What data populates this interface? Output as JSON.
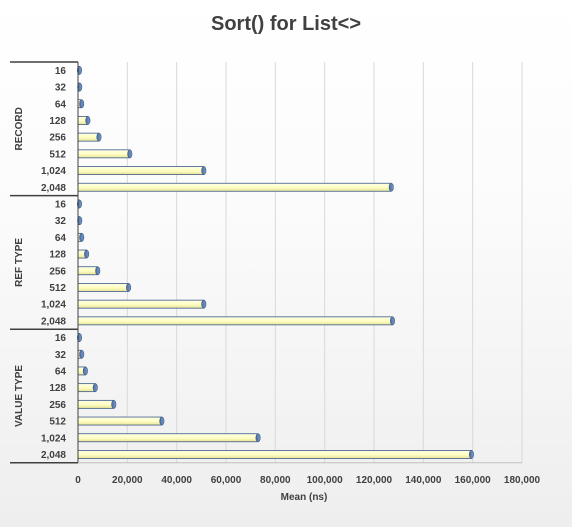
{
  "chart_data": {
    "type": "bar",
    "orientation": "horizontal",
    "title": "Sort() for List<>",
    "xlabel": "Mean (ns)",
    "xlim": [
      0,
      180000
    ],
    "xticks": [
      0,
      20000,
      40000,
      60000,
      80000,
      100000,
      120000,
      140000,
      160000,
      180000
    ],
    "xtick_labels": [
      "0",
      "20,000",
      "40,000",
      "60,000",
      "80,000",
      "100,000",
      "120,000",
      "140,000",
      "160,000",
      "180,000"
    ],
    "grid": true,
    "legend": "none",
    "groups": [
      {
        "name": "RECORD",
        "categories": [
          "16",
          "32",
          "64",
          "128",
          "256",
          "512",
          "1,024",
          "2,048"
        ],
        "values": [
          300,
          700,
          1500,
          4000,
          8500,
          21000,
          51000,
          127000
        ]
      },
      {
        "name": "REF TYPE",
        "categories": [
          "16",
          "32",
          "64",
          "128",
          "256",
          "512",
          "1,024",
          "2,048"
        ],
        "values": [
          300,
          700,
          1500,
          3500,
          8000,
          20500,
          51000,
          127500
        ]
      },
      {
        "name": "VALUE TYPE",
        "categories": [
          "16",
          "32",
          "64",
          "128",
          "256",
          "512",
          "1,024",
          "2,048"
        ],
        "values": [
          500,
          1500,
          3000,
          7000,
          14500,
          34000,
          73000,
          159500
        ]
      }
    ],
    "colors": {
      "bar_fill_large": "#ffffc4",
      "bar_fill_small": "#5b7fb4",
      "bar_stroke": "#3c5a88",
      "gridline": "#d9d9d9",
      "axis": "#404040",
      "text": "#404040"
    }
  }
}
